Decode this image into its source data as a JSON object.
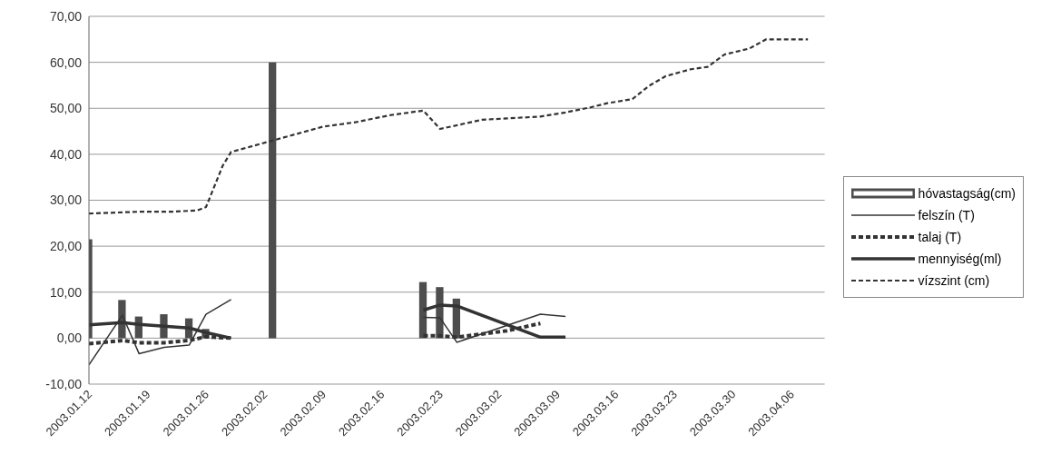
{
  "chart_data": {
    "type": "line",
    "series": [
      {
        "name": "hóvastagság(cm)",
        "type": "bar",
        "color": "#4d4d4d",
        "x": [
          "2003-01-12",
          "2003-01-16",
          "2003-01-18",
          "2003-01-21",
          "2003-01-24",
          "2003-01-26",
          "2003-02-03",
          "2003-02-21",
          "2003-02-23",
          "2003-02-25"
        ],
        "values": [
          21.5,
          8.3,
          4.7,
          5.2,
          4.3,
          2.0,
          60.0,
          12.2,
          11.1,
          8.6
        ]
      },
      {
        "name": "felszín (T)",
        "line_style": "solid",
        "color": "#333333",
        "x": [
          "2003-01-12",
          "2003-01-16",
          "2003-01-18",
          "2003-01-21",
          "2003-01-24",
          "2003-01-26",
          "2003-01-29",
          "2003-02-10",
          "2003-02-21",
          "2003-02-23",
          "2003-02-25",
          "2003-03-07",
          "2003-03-10"
        ],
        "values": [
          -5.8,
          5.0,
          -3.4,
          -2.0,
          -1.5,
          5.2,
          8.4,
          null,
          4.5,
          4.4,
          -0.9,
          5.2,
          4.7
        ]
      },
      {
        "name": "talaj (T)",
        "line_style": "dashed",
        "color": "#333333",
        "x": [
          "2003-01-12",
          "2003-01-16",
          "2003-01-18",
          "2003-01-21",
          "2003-01-24",
          "2003-01-26",
          "2003-01-29",
          "2003-02-10",
          "2003-02-21",
          "2003-02-23",
          "2003-02-25",
          "2003-03-03",
          "2003-03-07"
        ],
        "values": [
          -1.2,
          -0.5,
          -1.0,
          -1.0,
          -0.5,
          0.3,
          0.0,
          null,
          0.5,
          0.5,
          0.2,
          1.6,
          3.2
        ]
      },
      {
        "name": "mennyiség(ml)",
        "line_style": "solid",
        "color": "#333333",
        "x": [
          "2003-01-12",
          "2003-01-16",
          "2003-01-18",
          "2003-01-21",
          "2003-01-24",
          "2003-01-26",
          "2003-01-29",
          "2003-02-10",
          "2003-02-21",
          "2003-02-23",
          "2003-02-25",
          "2003-03-07",
          "2003-03-10"
        ],
        "values": [
          2.9,
          3.4,
          3.0,
          2.6,
          2.2,
          1.2,
          0.0,
          null,
          6.1,
          7.2,
          7.0,
          0.2,
          0.2
        ]
      },
      {
        "name": "vízszint (cm)",
        "line_style": "dashed",
        "color": "#333333",
        "x": [
          "2003-01-12",
          "2003-01-18",
          "2003-01-22",
          "2003-01-25",
          "2003-01-26",
          "2003-01-28",
          "2003-01-29",
          "2003-02-03",
          "2003-02-06",
          "2003-02-09",
          "2003-02-13",
          "2003-02-17",
          "2003-02-21",
          "2003-02-23",
          "2003-02-28",
          "2003-03-03",
          "2003-03-07",
          "2003-03-10",
          "2003-03-13",
          "2003-03-15",
          "2003-03-18",
          "2003-03-20",
          "2003-03-22",
          "2003-03-25",
          "2003-03-27",
          "2003-03-29",
          "2003-04-01",
          "2003-04-03",
          "2003-04-06",
          "2003-04-08"
        ],
        "values": [
          27.1,
          27.5,
          27.5,
          27.8,
          28.5,
          37.5,
          40.5,
          43.0,
          44.5,
          46.0,
          47.0,
          48.5,
          49.5,
          45.5,
          47.5,
          47.8,
          48.2,
          49.1,
          50.2,
          51.1,
          52.0,
          54.9,
          57.0,
          58.5,
          59.0,
          61.7,
          63.0,
          65.0,
          65.0,
          65.0
        ]
      }
    ],
    "xlim": [
      "2003-01-12",
      "2003-04-10"
    ],
    "xticks": [
      {
        "value": "2003-01-12",
        "label": "2003.01.12"
      },
      {
        "value": "2003-01-19",
        "label": "2003.01.19"
      },
      {
        "value": "2003-01-26",
        "label": "2003.01.26"
      },
      {
        "value": "2003-02-02",
        "label": "2003.02.02"
      },
      {
        "value": "2003-02-09",
        "label": "2003.02.09"
      },
      {
        "value": "2003-02-16",
        "label": "2003.02.16"
      },
      {
        "value": "2003-02-23",
        "label": "2003.02.23"
      },
      {
        "value": "2003-03-02",
        "label": "2003.03.02"
      },
      {
        "value": "2003-03-09",
        "label": "2003.03.09"
      },
      {
        "value": "2003-03-16",
        "label": "2003.03.16"
      },
      {
        "value": "2003-03-23",
        "label": "2003.03.23"
      },
      {
        "value": "2003-03-30",
        "label": "2003.03.30"
      },
      {
        "value": "2003-04-06",
        "label": "2003.04.06"
      }
    ],
    "ylim": [
      -10,
      70
    ],
    "yticks": [
      {
        "value": -10,
        "label": "-10,00"
      },
      {
        "value": 0,
        "label": "0,00"
      },
      {
        "value": 10,
        "label": "10,00"
      },
      {
        "value": 20,
        "label": "20,00"
      },
      {
        "value": 30,
        "label": "30,00"
      },
      {
        "value": 40,
        "label": "40,00"
      },
      {
        "value": 50,
        "label": "50,00"
      },
      {
        "value": 60,
        "label": "60,00"
      },
      {
        "value": 70,
        "label": "70,00"
      }
    ],
    "grid": "y",
    "legend": "right"
  }
}
